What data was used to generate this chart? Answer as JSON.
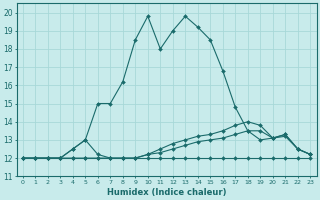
{
  "xlabel": "Humidex (Indice chaleur)",
  "bg_color": "#c8ebeb",
  "grid_color": "#a8d8d8",
  "line_color": "#1a6b6b",
  "xlim": [
    -0.5,
    23.5
  ],
  "ylim": [
    11.0,
    20.5
  ],
  "xticks": [
    0,
    1,
    2,
    3,
    4,
    5,
    6,
    7,
    8,
    9,
    10,
    11,
    12,
    13,
    14,
    15,
    16,
    17,
    18,
    19,
    20,
    21,
    22,
    23
  ],
  "yticks": [
    11,
    12,
    13,
    14,
    15,
    16,
    17,
    18,
    19,
    20
  ],
  "series": [
    {
      "x": [
        0,
        1,
        2,
        3,
        4,
        5,
        6,
        7,
        8,
        9,
        10,
        11,
        12,
        13,
        14,
        15,
        16,
        17,
        18,
        19,
        20,
        21,
        22,
        23
      ],
      "y": [
        12,
        12,
        12,
        12,
        12,
        12,
        12,
        12,
        12,
        12,
        12,
        12,
        12,
        12,
        12,
        12,
        12,
        12,
        12,
        12,
        12,
        12,
        12,
        12
      ]
    },
    {
      "x": [
        0,
        1,
        2,
        3,
        4,
        5,
        6,
        7,
        8,
        9,
        10,
        11,
        12,
        13,
        14,
        15,
        16,
        17,
        18,
        19,
        20,
        21,
        22,
        23
      ],
      "y": [
        12,
        12,
        12,
        12,
        12,
        12,
        12,
        12,
        12,
        12,
        12.2,
        12.3,
        12.5,
        12.7,
        12.9,
        13.0,
        13.1,
        13.3,
        13.5,
        13.5,
        13.1,
        13.2,
        12.5,
        12.2
      ]
    },
    {
      "x": [
        0,
        1,
        2,
        3,
        4,
        5,
        6,
        7,
        8,
        9,
        10,
        11,
        12,
        13,
        14,
        15,
        16,
        17,
        18,
        19,
        20,
        21,
        22,
        23
      ],
      "y": [
        12,
        12,
        12,
        12,
        12.5,
        13,
        12.2,
        12,
        12,
        12,
        12.2,
        12.5,
        12.8,
        13.0,
        13.2,
        13.3,
        13.5,
        13.8,
        14.0,
        13.8,
        13.1,
        13.3,
        12.5,
        12.2
      ]
    },
    {
      "x": [
        0,
        1,
        2,
        3,
        4,
        5,
        6,
        7,
        8,
        9,
        10,
        11,
        12,
        13,
        14,
        15,
        16,
        17,
        18,
        19,
        20,
        21,
        22,
        23
      ],
      "y": [
        12,
        12,
        12,
        12,
        12.5,
        13,
        15.0,
        15.0,
        16.2,
        18.5,
        19.8,
        18.0,
        19.0,
        19.8,
        19.2,
        18.5,
        16.8,
        14.8,
        13.5,
        13.0,
        13.1,
        13.3,
        12.5,
        12.2
      ]
    }
  ]
}
